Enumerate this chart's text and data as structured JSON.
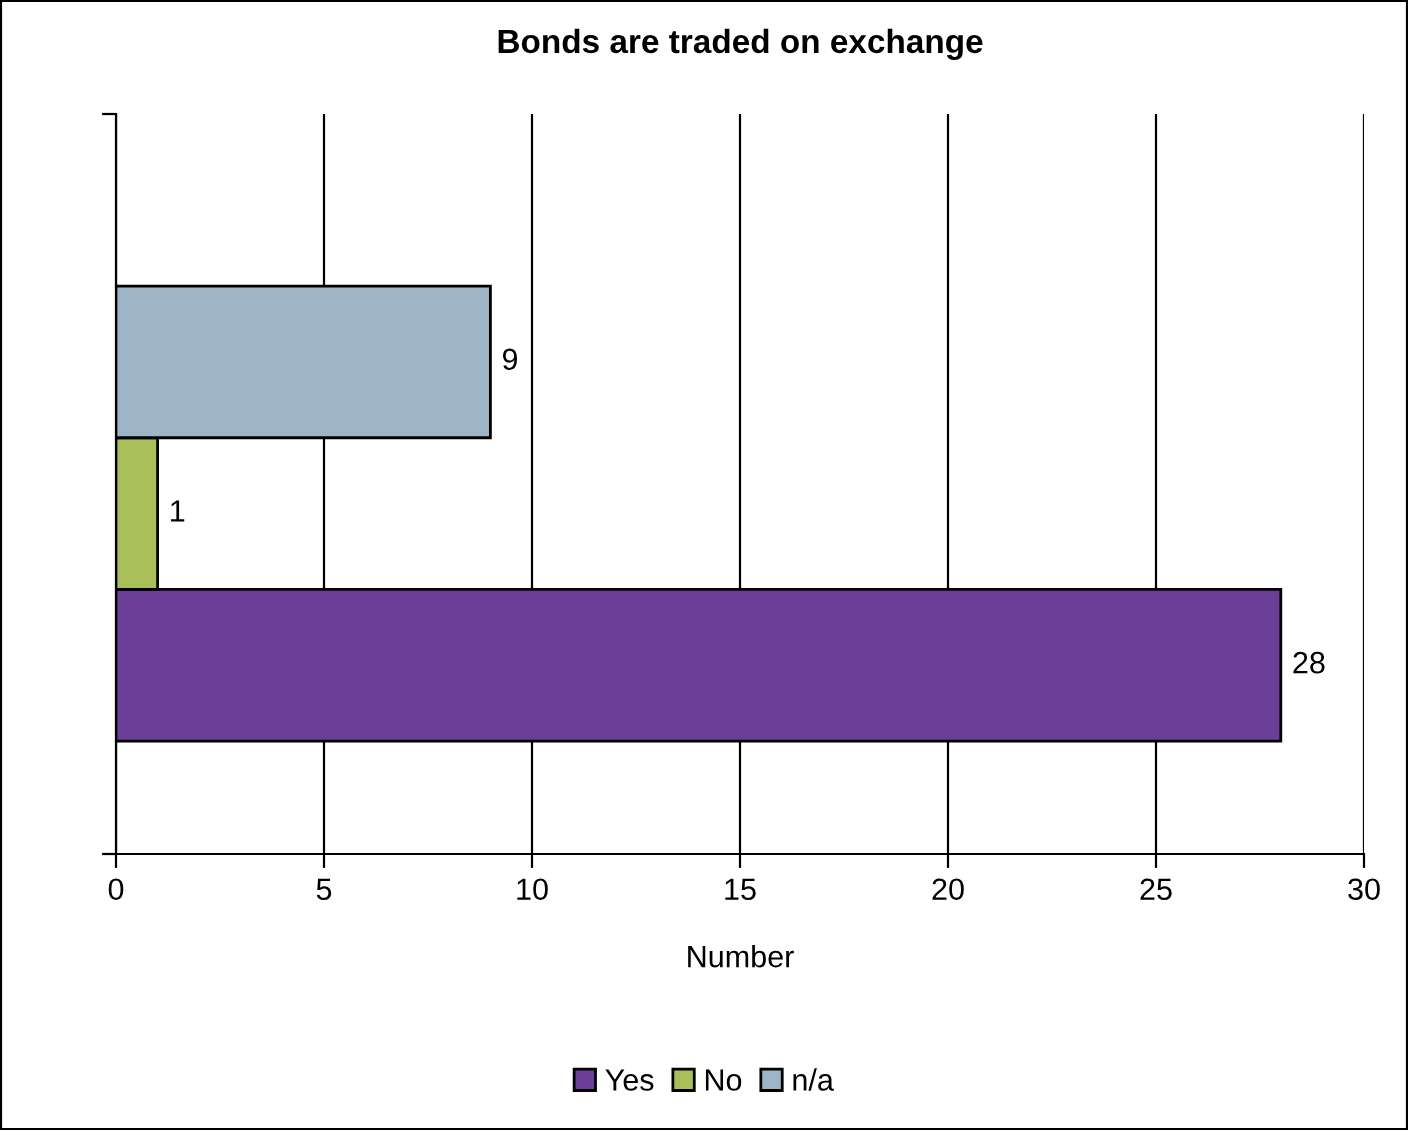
{
  "chart_data": {
    "type": "bar",
    "orientation": "horizontal",
    "title": "Bonds are traded on exchange",
    "xlabel": "Number",
    "categories": [
      null
    ],
    "series": [
      {
        "name": "Yes",
        "color": "#6b3f98",
        "values": [
          28
        ]
      },
      {
        "name": "No",
        "color": "#a9bf5a",
        "values": [
          1
        ]
      },
      {
        "name": "n/a",
        "color": "#9db5c4",
        "values": [
          9
        ]
      }
    ],
    "xlim": [
      0,
      30
    ],
    "xticks": [
      0,
      5,
      10,
      15,
      20,
      25,
      30
    ],
    "grid": "x",
    "legend": "bottom",
    "data_labels": true,
    "tick_labels": "x"
  }
}
